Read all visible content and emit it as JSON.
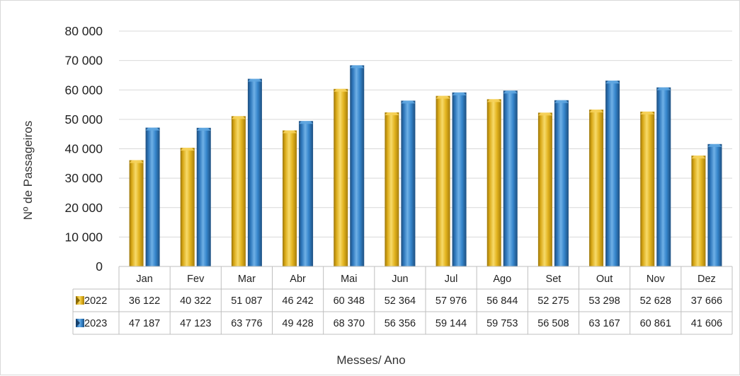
{
  "chart_data": {
    "type": "bar",
    "title": "",
    "xlabel": "Messes/ Ano",
    "ylabel": "Nº de Passageiros",
    "ylim": [
      0,
      80000
    ],
    "ytick_values": [
      0,
      10000,
      20000,
      30000,
      40000,
      50000,
      60000,
      70000,
      80000
    ],
    "ytick_labels": [
      "0",
      "10 000",
      "20 000",
      "30 000",
      "40 000",
      "50 000",
      "60 000",
      "70 000",
      "80 000"
    ],
    "categories": [
      "Jan",
      "Fev",
      "Mar",
      "Abr",
      "Mai",
      "Jun",
      "Jul",
      "Ago",
      "Set",
      "Out",
      "Nov",
      "Dez"
    ],
    "grid": true,
    "legend": "data-table",
    "series": [
      {
        "name": "2022",
        "color": "#E0B21C",
        "values": [
          36122,
          40322,
          51087,
          46242,
          60348,
          52364,
          57976,
          56844,
          52275,
          53298,
          52628,
          37666
        ],
        "labels": [
          "36 122",
          "40 322",
          "51 087",
          "46 242",
          "60 348",
          "52 364",
          "57 976",
          "56 844",
          "52 275",
          "53 298",
          "52 628",
          "37 666"
        ]
      },
      {
        "name": "2023",
        "color": "#2E75B6",
        "values": [
          47187,
          47123,
          63776,
          49428,
          68370,
          56356,
          59144,
          59753,
          56508,
          63167,
          60861,
          41606
        ],
        "labels": [
          "47 187",
          "47 123",
          "63 776",
          "49 428",
          "68 370",
          "56 356",
          "59 144",
          "59 753",
          "56 508",
          "63 167",
          "60 861",
          "41 606"
        ]
      }
    ]
  }
}
